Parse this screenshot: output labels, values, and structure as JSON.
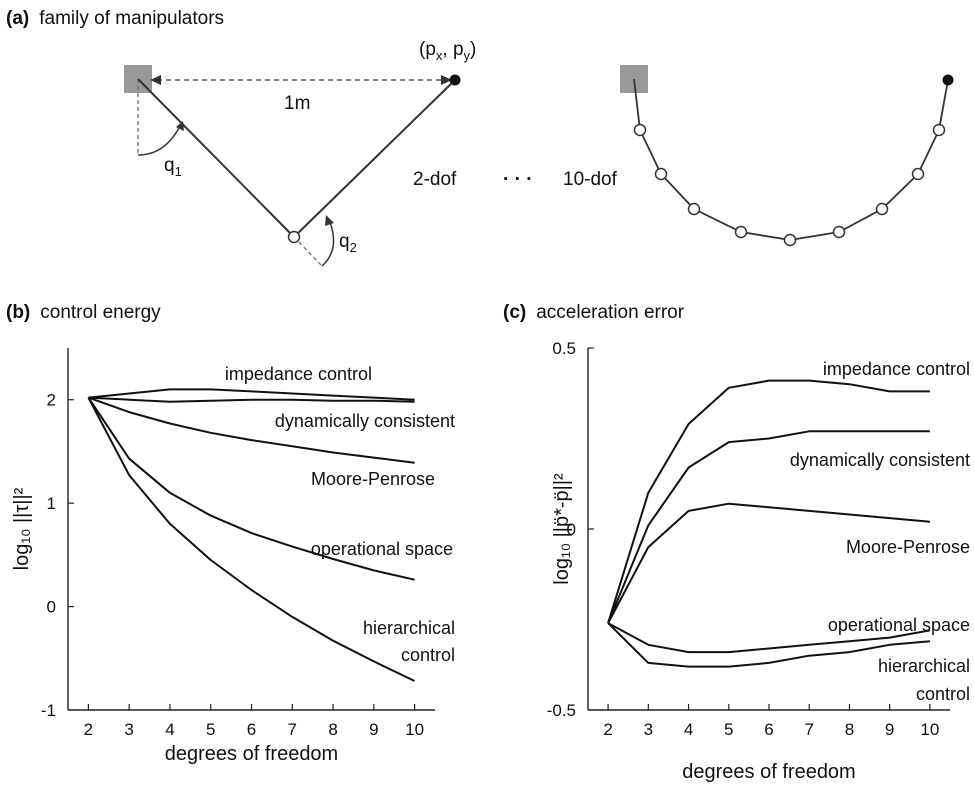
{
  "panels": {
    "a": {
      "letter": "(a)",
      "title": "family of manipulators"
    },
    "b": {
      "letter": "(b)",
      "title": "control energy"
    },
    "c": {
      "letter": "(c)",
      "title": "acceleration error"
    }
  },
  "diagram": {
    "distance_label": "1m",
    "q1": "q",
    "q1_sub": "1",
    "q2": "q",
    "q2_sub": "2",
    "target_open": "(p",
    "target_sub_x": "x",
    "target_mid": ", p",
    "target_sub_y": "y",
    "target_close": ")",
    "label_2dof": "2-dof",
    "ellipsis": "· · ·",
    "label_10dof": "10-dof",
    "colors": {
      "link": "#333333",
      "base": "#999999",
      "dashed": "#777777"
    }
  },
  "chart_data": [
    {
      "id": "b",
      "type": "line",
      "title": "control energy",
      "xlabel": "degrees of freedom",
      "ylabel": "log₁₀ ||τ||²",
      "x": [
        2,
        3,
        4,
        5,
        6,
        7,
        8,
        9,
        10
      ],
      "xlim": [
        1.5,
        10.5
      ],
      "ylim": [
        -1,
        2.5
      ],
      "xticks": [
        "2",
        "3",
        "4",
        "5",
        "6",
        "7",
        "8",
        "9",
        "10"
      ],
      "yticks": [
        {
          "value": -1,
          "label": "-1"
        },
        {
          "value": 0,
          "label": "0"
        },
        {
          "value": 1,
          "label": "1"
        },
        {
          "value": 2,
          "label": "2"
        }
      ],
      "grid": false,
      "series": [
        {
          "name": "impedance control",
          "values": [
            2.02,
            2.06,
            2.1,
            2.1,
            2.08,
            2.06,
            2.04,
            2.02,
            2.0
          ]
        },
        {
          "name": "dynamically consistent",
          "values": [
            2.02,
            2.0,
            1.98,
            1.99,
            2.0,
            2.0,
            1.99,
            1.99,
            1.98
          ]
        },
        {
          "name": "Moore-Penrose",
          "values": [
            2.02,
            1.88,
            1.77,
            1.68,
            1.61,
            1.55,
            1.49,
            1.44,
            1.39
          ]
        },
        {
          "name": "operational space",
          "values": [
            2.02,
            1.43,
            1.1,
            0.88,
            0.71,
            0.58,
            0.46,
            0.35,
            0.26
          ]
        },
        {
          "name": "hierarchical control",
          "values": [
            2.02,
            1.27,
            0.8,
            0.45,
            0.16,
            -0.1,
            -0.33,
            -0.53,
            -0.72
          ]
        }
      ],
      "series_labels": [
        "impedance control",
        "dynamically consistent",
        "Moore-Penrose",
        "operational space",
        "hierarchical",
        "control"
      ]
    },
    {
      "id": "c",
      "type": "line",
      "title": "acceleration error",
      "xlabel": "degrees of freedom",
      "ylabel": "log₁₀ ||p̈*-p̈||²",
      "x": [
        2,
        3,
        4,
        5,
        6,
        7,
        8,
        9,
        10
      ],
      "xlim": [
        1.5,
        10.5
      ],
      "ylim": [
        -0.5,
        0.5
      ],
      "xticks": [
        "2",
        "3",
        "4",
        "5",
        "6",
        "7",
        "8",
        "9",
        "10"
      ],
      "yticks": [
        {
          "value": -0.5,
          "label": "-0.5"
        },
        {
          "value": 0,
          "label": "0"
        },
        {
          "value": 0.5,
          "label": "0.5"
        }
      ],
      "grid": false,
      "series": [
        {
          "name": "impedance control",
          "values": [
            -0.26,
            0.1,
            0.29,
            0.39,
            0.41,
            0.41,
            0.4,
            0.38,
            0.38
          ]
        },
        {
          "name": "dynamically consistent",
          "values": [
            -0.26,
            0.01,
            0.17,
            0.24,
            0.25,
            0.27,
            0.27,
            0.27,
            0.27
          ]
        },
        {
          "name": "Moore-Penrose",
          "values": [
            -0.26,
            -0.05,
            0.05,
            0.07,
            0.06,
            0.05,
            0.04,
            0.03,
            0.02
          ]
        },
        {
          "name": "operational space",
          "values": [
            -0.26,
            -0.32,
            -0.34,
            -0.34,
            -0.33,
            -0.32,
            -0.31,
            -0.3,
            -0.28
          ]
        },
        {
          "name": "hierarchical control",
          "values": [
            -0.26,
            -0.37,
            -0.38,
            -0.38,
            -0.37,
            -0.35,
            -0.34,
            -0.32,
            -0.31
          ]
        }
      ],
      "series_labels": [
        "impedance control",
        "dynamically consistent",
        "Moore-Penrose",
        "operational space",
        "hierarchical",
        "control"
      ]
    }
  ]
}
